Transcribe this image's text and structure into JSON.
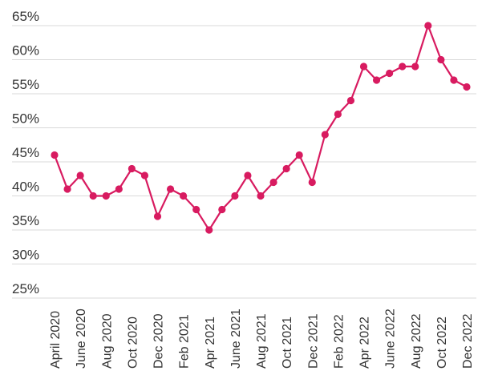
{
  "chart_data": {
    "type": "line",
    "title": "",
    "xlabel": "",
    "ylabel": "",
    "ylim": [
      25,
      65
    ],
    "y_ticks": [
      25,
      30,
      35,
      40,
      45,
      50,
      55,
      60,
      65
    ],
    "y_tick_format": "{v}%",
    "grid": "horizontal",
    "color": "#d81b60",
    "x": [
      "April 2020",
      "May 2020",
      "June 2020",
      "July 2020",
      "Aug 2020",
      "Sep 2020",
      "Oct 2020",
      "Nov 2020",
      "Dec 2020",
      "Jan 2021",
      "Feb 2021",
      "Mar 2021",
      "Apr 2021",
      "May 2021",
      "June 2021",
      "July 2021",
      "Aug 2021",
      "Sep 2021",
      "Oct 2021",
      "Nov 2021",
      "Dec 2021",
      "Jan 2022",
      "Feb 2022",
      "Mar 2022",
      "Apr 2022",
      "May 2022",
      "June 2022",
      "July 2022",
      "Aug 2022",
      "Sep 2022",
      "Oct 2022",
      "Nov 2022",
      "Dec 2022"
    ],
    "tick_labels": [
      "April 2020",
      "June 2020",
      "Aug 2020",
      "Oct 2020",
      "Dec 2020",
      "Feb 2021",
      "Apr 2021",
      "June 2021",
      "Aug 2021",
      "Oct 2021",
      "Dec 2021",
      "Feb 2022",
      "Apr 2022",
      "June 2022",
      "Aug 2022",
      "Oct 2022",
      "Dec 2022"
    ],
    "series": [
      {
        "values": [
          46,
          41,
          43,
          40,
          40,
          41,
          44,
          43,
          37,
          41,
          40,
          38,
          35,
          38,
          40,
          43,
          40,
          42,
          44,
          46,
          42,
          49,
          52,
          54,
          59,
          57,
          58,
          59,
          59,
          65,
          60,
          57,
          56
        ]
      }
    ]
  }
}
